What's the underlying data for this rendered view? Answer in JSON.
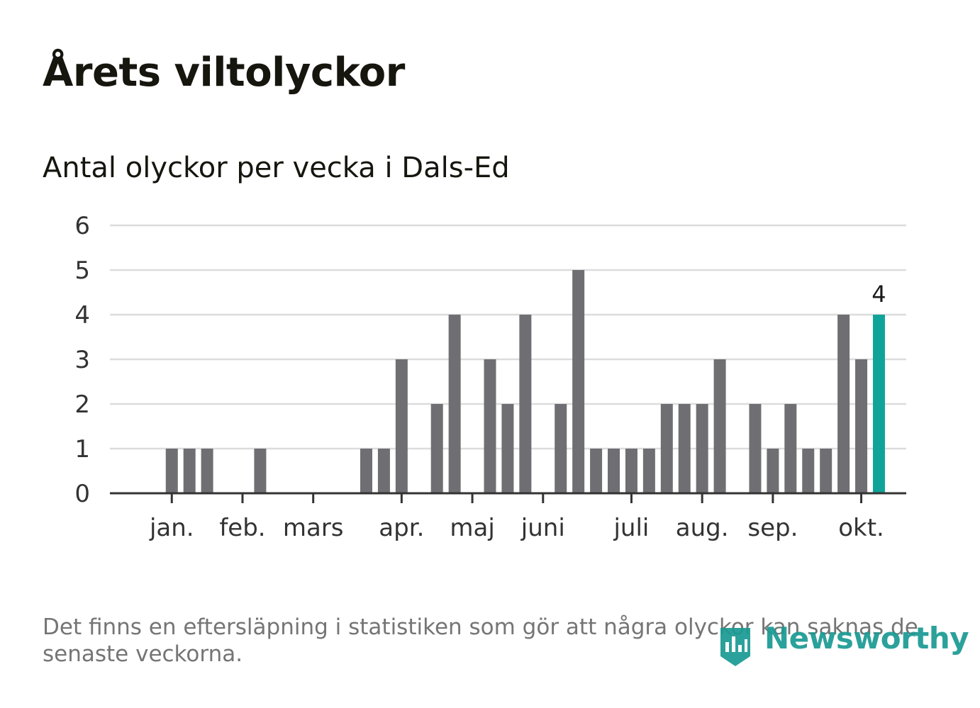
{
  "title": "Årets viltolyckor",
  "subtitle": "Antal olyckor per vecka i Dals-Ed",
  "footnote": "Det finns en eftersläpning i statistiken som gör att några olyckor kan saknas de senaste veckorna.",
  "brand": {
    "name": "Newsworthy",
    "color": "#1a9a93"
  },
  "colors": {
    "bar": "#6f6e73",
    "highlight": "#10a39a",
    "grid": "#dcdcdc",
    "axis": "#333333"
  },
  "chart_data": {
    "type": "bar",
    "title": "Antal olyckor per vecka i Dals-Ed",
    "xlabel": "",
    "ylabel": "",
    "ylim": [
      0,
      6
    ],
    "yticks": [
      0,
      1,
      2,
      3,
      4,
      5,
      6
    ],
    "weeks": [
      1,
      2,
      3,
      4,
      5,
      6,
      7,
      8,
      9,
      10,
      11,
      12,
      13,
      14,
      15,
      16,
      17,
      18,
      19,
      20,
      21,
      22,
      23,
      24,
      25,
      26,
      27,
      28,
      29,
      30,
      31,
      32,
      33,
      34,
      35,
      36,
      37,
      38,
      39,
      40,
      41,
      42,
      43
    ],
    "values": [
      0,
      0,
      1,
      1,
      1,
      0,
      0,
      1,
      0,
      0,
      0,
      0,
      0,
      1,
      1,
      3,
      0,
      2,
      4,
      0,
      3,
      2,
      4,
      0,
      2,
      5,
      1,
      1,
      1,
      1,
      2,
      2,
      2,
      3,
      0,
      2,
      1,
      2,
      1,
      1,
      4,
      3,
      4
    ],
    "highlight_index": 42,
    "highlight_label": "4",
    "month_labels": [
      {
        "label": "jan.",
        "week": 3
      },
      {
        "label": "feb.",
        "week": 7
      },
      {
        "label": "mars",
        "week": 11
      },
      {
        "label": "apr.",
        "week": 16
      },
      {
        "label": "maj",
        "week": 20
      },
      {
        "label": "juni",
        "week": 24
      },
      {
        "label": "juli",
        "week": 29
      },
      {
        "label": "aug.",
        "week": 33
      },
      {
        "label": "sep.",
        "week": 37
      },
      {
        "label": "okt.",
        "week": 42
      }
    ]
  }
}
